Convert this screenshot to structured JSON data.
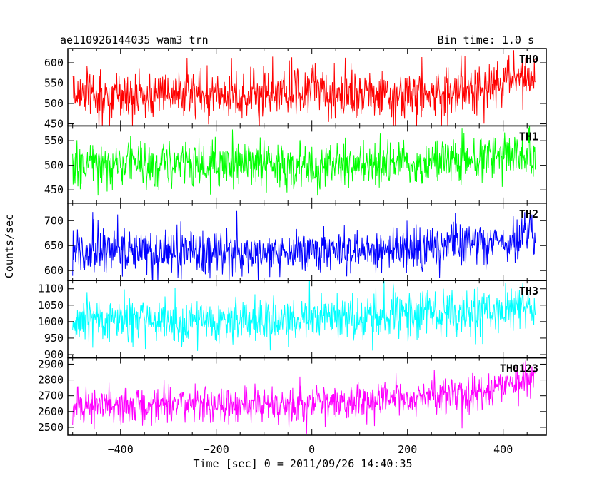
{
  "chart_data": {
    "type": "line",
    "title_left": "ae110926144035_wam3_trn",
    "title_right": "Bin time: 1.0 s",
    "xlabel": "Time [sec] 0 = 2011/09/26 14:40:35",
    "ylabel": "Counts/sec",
    "xlim": [
      -510,
      490
    ],
    "x_ticks": [
      -400,
      -200,
      0,
      200,
      400
    ],
    "x_tick_labels": [
      "−400",
      "−200",
      "0",
      "200",
      "400"
    ],
    "x_data_range": [
      -500,
      467
    ],
    "bin_time_s": 1.0,
    "panels": [
      {
        "name": "TH0",
        "color": "#ff0000",
        "ylim": [
          445,
          635
        ],
        "yticks": [
          450,
          500,
          550,
          600
        ],
        "trend": [
          [
            -500,
            518
          ],
          [
            -300,
            522
          ],
          [
            -100,
            520
          ],
          [
            -5,
            525
          ],
          [
            0,
            545
          ],
          [
            20,
            532
          ],
          [
            100,
            515
          ],
          [
            250,
            525
          ],
          [
            350,
            540
          ],
          [
            467,
            565
          ]
        ],
        "sigma": 30
      },
      {
        "name": "TH1",
        "color": "#00ff00",
        "ylim": [
          423,
          580
        ],
        "yticks": [
          450,
          500,
          550
        ],
        "trend": [
          [
            -500,
            498
          ],
          [
            -200,
            502
          ],
          [
            0,
            498
          ],
          [
            200,
            505
          ],
          [
            350,
            515
          ],
          [
            467,
            525
          ]
        ],
        "sigma": 24
      },
      {
        "name": "TH2",
        "color": "#0000ff",
        "ylim": [
          580,
          735
        ],
        "yticks": [
          600,
          650,
          700
        ],
        "trend": [
          [
            -500,
            638
          ],
          [
            -200,
            635
          ],
          [
            0,
            638
          ],
          [
            200,
            645
          ],
          [
            350,
            655
          ],
          [
            467,
            670
          ]
        ],
        "sigma": 23
      },
      {
        "name": "TH3",
        "color": "#00ffff",
        "ylim": [
          890,
          1125
        ],
        "yticks": [
          900,
          950,
          1000,
          1050,
          1100
        ],
        "trend": [
          [
            -500,
            1010
          ],
          [
            -300,
            1000
          ],
          [
            -100,
            1005
          ],
          [
            100,
            1010
          ],
          [
            300,
            1025
          ],
          [
            467,
            1045
          ]
        ],
        "sigma": 35
      },
      {
        "name": "TH0123",
        "color": "#ff00ff",
        "ylim": [
          2450,
          2940
        ],
        "yticks": [
          2500,
          2600,
          2700,
          2800,
          2900
        ],
        "trend": [
          [
            -500,
            2640
          ],
          [
            -200,
            2640
          ],
          [
            0,
            2650
          ],
          [
            200,
            2680
          ],
          [
            350,
            2720
          ],
          [
            400,
            2760
          ],
          [
            467,
            2820
          ]
        ],
        "sigma": 55
      }
    ]
  }
}
